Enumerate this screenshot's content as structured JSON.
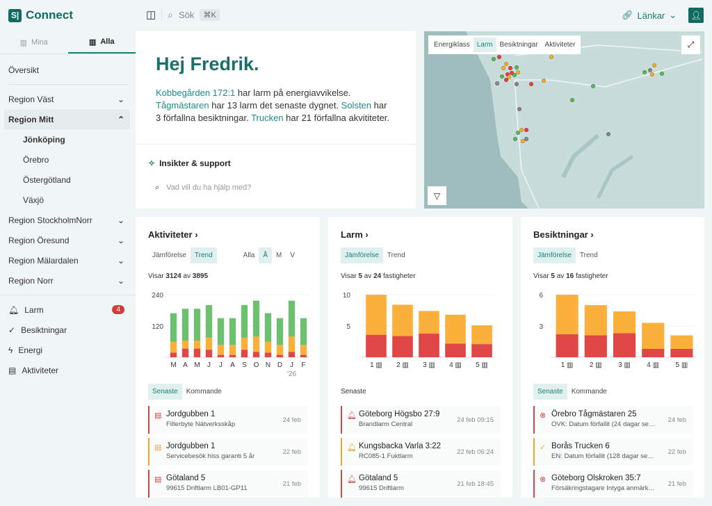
{
  "app": {
    "name": "Connect",
    "logo": "S|"
  },
  "header": {
    "search_label": "Sök",
    "search_shortcut": "⌘K",
    "links_label": "Länkar"
  },
  "sidebar": {
    "tabs": [
      {
        "label": "Mina"
      },
      {
        "label": "Alla"
      }
    ],
    "overview": "Översikt",
    "regions": [
      {
        "label": "Region Väst"
      },
      {
        "label": "Region Mitt",
        "children": [
          "Jönköping",
          "Örebro",
          "Östergötland",
          "Växjö"
        ]
      },
      {
        "label": "Region StockholmNorr"
      },
      {
        "label": "Region Öresund"
      },
      {
        "label": "Region Mälardalen"
      },
      {
        "label": "Region Norr"
      }
    ],
    "nav": [
      {
        "label": "Larm",
        "badge": "4"
      },
      {
        "label": "Besiktningar"
      },
      {
        "label": "Energi"
      },
      {
        "label": "Aktiviteter"
      }
    ]
  },
  "hero": {
    "greeting": "Hej Fredrik.",
    "p1_link": "Kobbegården 172:1",
    "p1": " har larm på energiavvikelse. ",
    "p2_link": "Tågmästaren",
    "p2": " har 13 larm det senaste dygnet. ",
    "p3_link": "Solsten",
    "p3": " har 3 förfallna besiktningar. ",
    "p4_link": "Trucken",
    "p4": " har 21 förfallna akvititeter.",
    "insight_title": "Insikter & support",
    "insight_placeholder": "Vad vill du ha hjälp med?"
  },
  "map": {
    "tabs": [
      "Energiklass",
      "Larm",
      "Besiktningar",
      "Aktiviteter"
    ],
    "active_tab": "Larm"
  },
  "panels": {
    "activities": {
      "title": "Aktiviteter",
      "toggles": [
        "Jämförelse",
        "Trend"
      ],
      "periods": [
        "Alla",
        "Å",
        "M",
        "V"
      ],
      "showing_pre": "Visar ",
      "shown": "3124",
      "mid": " av ",
      "total": "3895",
      "list_tabs": [
        "Senaste",
        "Kommande"
      ],
      "items": [
        {
          "name": "Jordgubben 1",
          "sub": "Filterbyte Nätverksskåp",
          "date": "24 feb",
          "level": "red"
        },
        {
          "name": "Jordgubben 1",
          "sub": "Servicebesök hiss garanti 5 år",
          "date": "22 feb",
          "level": "warn"
        },
        {
          "name": "Götaland 5",
          "sub": "99615 Driftlarm LB01-GP11",
          "date": "21 feb",
          "level": "red"
        }
      ]
    },
    "alarms": {
      "title": "Larm",
      "toggles": [
        "Jämförelse",
        "Trend"
      ],
      "showing_pre": "Visar ",
      "shown": "5",
      "mid": " av ",
      "total": "24",
      "suffix": " fastigheter",
      "list_label": "Senaste",
      "items": [
        {
          "name": "Göteborg Högsbo 27:9",
          "sub": "Brandlarm Central",
          "date": "24 feb 09:15",
          "level": "red"
        },
        {
          "name": "Kungsbacka Varla 3:22",
          "sub": "RC085-1 Fuktlarm",
          "date": "22 feb 06:24",
          "level": "warn"
        },
        {
          "name": "Götaland 5",
          "sub": "99615 Driftlarm",
          "date": "21 feb 18:45",
          "level": "red"
        }
      ]
    },
    "inspections": {
      "title": "Besiktningar",
      "toggles": [
        "Jämförelse",
        "Trend"
      ],
      "showing_pre": "Visar ",
      "shown": "5",
      "mid": " av ",
      "total": "16",
      "suffix": " fastigheter",
      "list_tabs": [
        "Senaste",
        "Kommande"
      ],
      "items": [
        {
          "name": "Örebro Tågmästaren 25",
          "sub": "OVK: Datum förfallit (24 dagar sedan)",
          "date": "24 feb",
          "level": "red"
        },
        {
          "name": "Borås Trucken 6",
          "sub": "EN: Datum förfallit (128 dagar sedan)",
          "date": "22 feb",
          "level": "warn"
        },
        {
          "name": "Göteborg Olskroken 35:7",
          "sub": "Försäkringstagare Intyga anmärkningar",
          "date": "21 feb",
          "level": "red"
        }
      ]
    }
  },
  "chart_data": [
    {
      "type": "bar",
      "stacked": true,
      "title": "Aktiviteter",
      "categories": [
        "M",
        "A",
        "M",
        "J",
        "J",
        "A",
        "S",
        "O",
        "N",
        "D",
        "J",
        "F"
      ],
      "year_label": "'26",
      "yticks": [
        120,
        240
      ],
      "ylim": [
        0,
        240
      ],
      "series": [
        {
          "name": "red",
          "color": "#e04848",
          "values": [
            18,
            33,
            33,
            29,
            9,
            9,
            29,
            21,
            18,
            9,
            21,
            9
          ]
        },
        {
          "name": "yellow",
          "color": "#fbb03b",
          "values": [
            42,
            31,
            31,
            46,
            39,
            39,
            46,
            59,
            42,
            39,
            59,
            39
          ]
        },
        {
          "name": "green",
          "color": "#6cc070",
          "values": [
            109,
            122,
            122,
            125,
            102,
            102,
            125,
            137,
            109,
            102,
            137,
            102
          ]
        }
      ]
    },
    {
      "type": "bar",
      "stacked": true,
      "title": "Larm",
      "categories": [
        "1",
        "2",
        "3",
        "4",
        "5"
      ],
      "yticks": [
        5,
        10
      ],
      "ylim": [
        0,
        10
      ],
      "series": [
        {
          "name": "red",
          "color": "#e04848",
          "values": [
            3.6,
            3.4,
            3.8,
            2.2,
            2.1
          ]
        },
        {
          "name": "yellow",
          "color": "#fbb03b",
          "values": [
            6.4,
            5.0,
            3.6,
            4.6,
            3.0
          ]
        }
      ]
    },
    {
      "type": "bar",
      "stacked": true,
      "title": "Besiktningar",
      "categories": [
        "1",
        "2",
        "3",
        "4",
        "5"
      ],
      "yticks": [
        3,
        6
      ],
      "ylim": [
        0,
        6
      ],
      "series": [
        {
          "name": "red",
          "color": "#e04848",
          "values": [
            2.2,
            2.1,
            2.3,
            0.8,
            0.8
          ]
        },
        {
          "name": "yellow",
          "color": "#fbb03b",
          "values": [
            3.8,
            2.9,
            2.1,
            2.5,
            1.3
          ]
        }
      ]
    }
  ]
}
